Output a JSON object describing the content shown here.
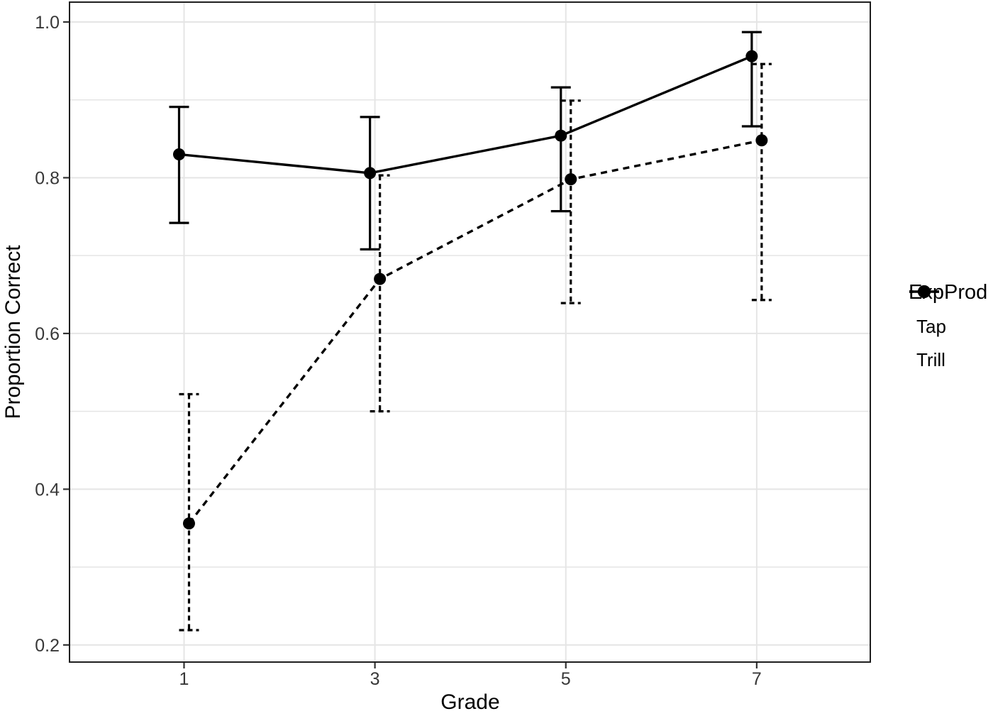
{
  "chart_data": {
    "type": "line",
    "title": "",
    "xlabel": "Grade",
    "ylabel": "Proportion Correct",
    "x": [
      1,
      3,
      5,
      7
    ],
    "x_tick_labels": [
      "1",
      "3",
      "5",
      "7"
    ],
    "y_ticks": [
      0.2,
      0.4,
      0.6,
      0.8,
      1.0
    ],
    "y_tick_labels": [
      "0.2",
      "0.4",
      "0.6",
      "0.8",
      "1.0"
    ],
    "y_minor_gridlines": [
      0.3,
      0.5,
      0.7,
      0.9
    ],
    "xlim": [
      -0.2,
      8.19
    ],
    "ylim": [
      0.178,
      1.0255
    ],
    "grid": "horizontal every 0.1, vertical at x breaks only",
    "legend": {
      "title": "ExpProd",
      "position": "right",
      "entries": [
        {
          "label": "Tap",
          "style": "solid"
        },
        {
          "label": "Trill",
          "style": "dashed"
        }
      ]
    },
    "series": [
      {
        "name": "Tap",
        "line": "solid",
        "marker": "filled-circle",
        "values": [
          {
            "x": 1,
            "y": 0.83,
            "lo": 0.742,
            "hi": 0.891
          },
          {
            "x": 3,
            "y": 0.806,
            "lo": 0.708,
            "hi": 0.878
          },
          {
            "x": 5,
            "y": 0.854,
            "lo": 0.757,
            "hi": 0.916
          },
          {
            "x": 7,
            "y": 0.956,
            "lo": 0.866,
            "hi": 0.987
          }
        ]
      },
      {
        "name": "Trill",
        "line": "dashed",
        "marker": "filled-circle",
        "values": [
          {
            "x": 1,
            "y": 0.356,
            "lo": 0.219,
            "hi": 0.522
          },
          {
            "x": 3,
            "y": 0.67,
            "lo": 0.5,
            "hi": 0.803
          },
          {
            "x": 5,
            "y": 0.798,
            "lo": 0.639,
            "hi": 0.899
          },
          {
            "x": 7,
            "y": 0.848,
            "lo": 0.643,
            "hi": 0.946
          }
        ]
      }
    ]
  },
  "style": {
    "series_color": "#000000",
    "grid_color": "#e5e5e5",
    "panel_border_color": "#1f1f1f",
    "tick_mark_color": "#333333",
    "tick_label_color": "#383838",
    "background": "#ffffff"
  }
}
